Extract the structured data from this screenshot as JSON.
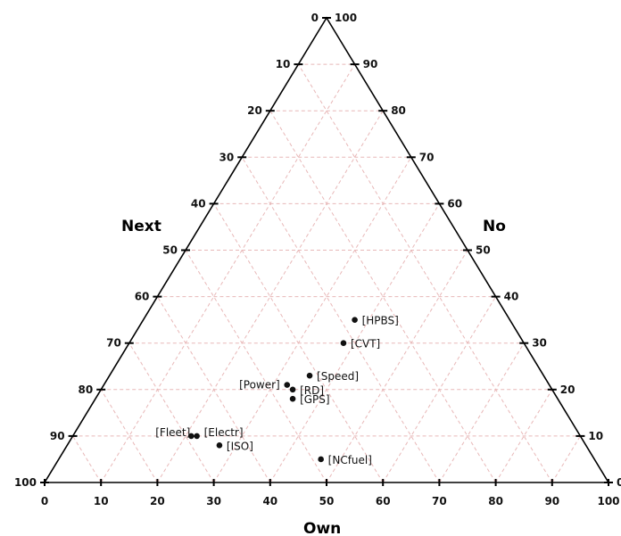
{
  "chart_data": {
    "type": "scatter",
    "subtype": "ternary",
    "axes": {
      "next": {
        "label": "Next",
        "ticks": [
          "0",
          "10",
          "20",
          "30",
          "40",
          "50",
          "60",
          "70",
          "80",
          "90",
          "100"
        ]
      },
      "no": {
        "label": "No",
        "ticks": [
          "100",
          "90",
          "80",
          "70",
          "60",
          "50",
          "40",
          "30",
          "20",
          "10",
          "0"
        ]
      },
      "own": {
        "label": "Own",
        "ticks": [
          "0",
          "10",
          "20",
          "30",
          "40",
          "50",
          "60",
          "70",
          "80",
          "90",
          "100"
        ]
      }
    },
    "grid": true,
    "grid_color": "#e8b8b8",
    "points": [
      {
        "label": "[HPBS]",
        "own": 55,
        "next": 65,
        "no": 30
      },
      {
        "label": "[CVT]",
        "own": 53,
        "next": 70,
        "no": 25
      },
      {
        "label": "[Speed]",
        "own": 47,
        "next": 77,
        "no": 20
      },
      {
        "label": "[Power]",
        "own": 43,
        "next": 79,
        "no": 19
      },
      {
        "label": "[RD]",
        "own": 44,
        "next": 80,
        "no": 18
      },
      {
        "label": "[GPS]",
        "own": 44,
        "next": 82,
        "no": 16
      },
      {
        "label": "[NCfuel]",
        "own": 49,
        "next": 95,
        "no": 5
      },
      {
        "label": "[Fleet]",
        "own": 26,
        "next": 90,
        "no": 10
      },
      {
        "label": "[Electr]",
        "own": 27,
        "next": 90,
        "no": 10
      },
      {
        "label": "[ISO]",
        "own": 31,
        "next": 92,
        "no": 8
      }
    ]
  }
}
